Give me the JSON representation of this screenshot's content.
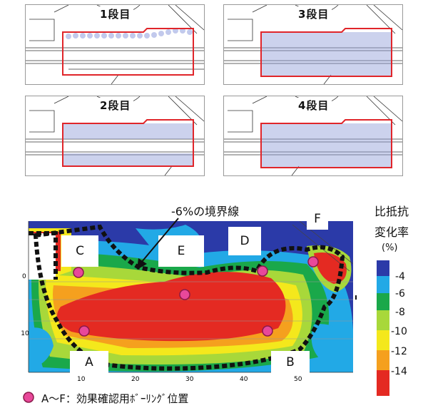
{
  "panels": [
    {
      "label": "1段目"
    },
    {
      "label": "3段目"
    },
    {
      "label": "2段目"
    },
    {
      "label": "4段目"
    }
  ],
  "boundary_label": "-6%の境界線",
  "zone_labels": [
    "A",
    "B",
    "C",
    "D",
    "E",
    "F"
  ],
  "legend": {
    "title_line1": "比抵抗",
    "title_line2": "変化率",
    "unit": "(%)",
    "ticks": [
      "-4",
      "-6",
      "-8",
      "-10",
      "-12",
      "-14"
    ],
    "colors": [
      "#2b3aa8",
      "#22a9e6",
      "#1aa84a",
      "#a8d83a",
      "#f4e81c",
      "#f5a01e",
      "#e42a22"
    ]
  },
  "axis": {
    "x_ticks": [
      "10",
      "20",
      "30",
      "40",
      "50"
    ],
    "y_ticks": [
      "0",
      "-10"
    ]
  },
  "caption": "A～F：効果確認用ﾎﾞｰﾘﾝｸﾞ位置",
  "colors": {
    "boring_marker": "#e8489a",
    "boundary": "#111111",
    "frame": "#e0252a"
  }
}
